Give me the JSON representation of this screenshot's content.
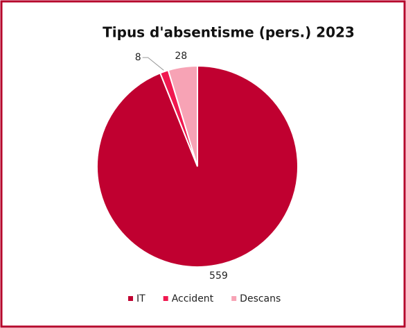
{
  "chart_data": {
    "type": "pie",
    "title": "Tipus d'absentisme (pers.) 2023",
    "categories": [
      "IT",
      "Accident",
      "Descans"
    ],
    "values": [
      559,
      8,
      28
    ],
    "colors": [
      "#c00030",
      "#f0184f",
      "#f7a3b5"
    ],
    "legend": "bottom"
  }
}
